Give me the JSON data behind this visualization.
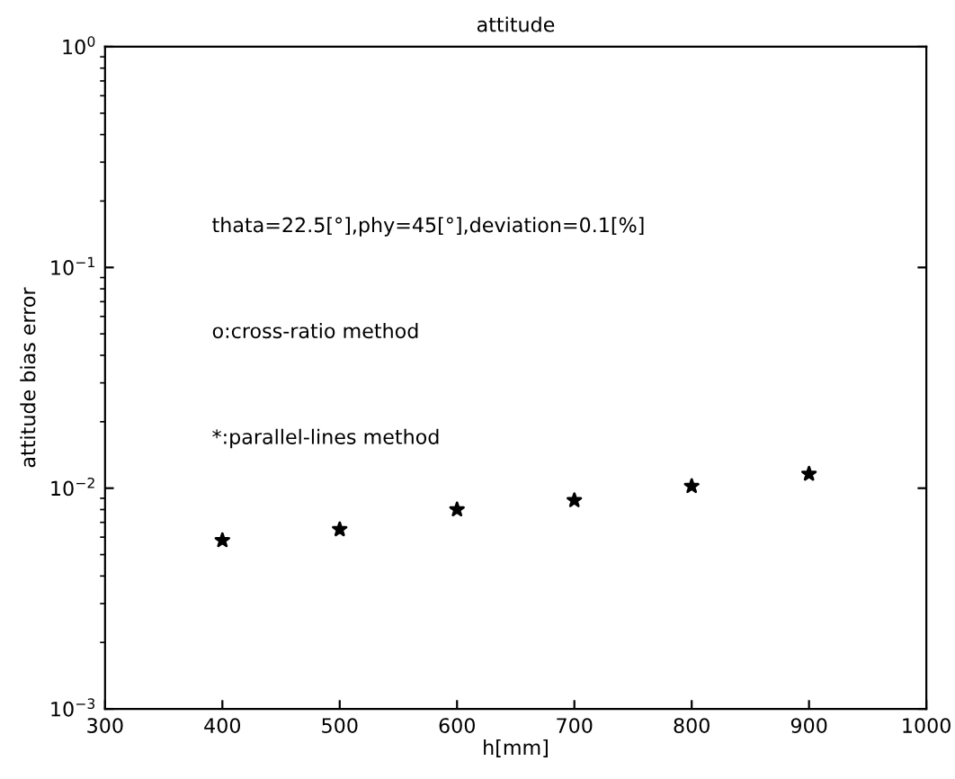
{
  "chart_data": {
    "type": "scatter",
    "title": "attitude",
    "xlabel": "h[mm]",
    "ylabel": "attitude bias error",
    "annotations": [
      "thata=22.5[°],phy=45[°],deviation=0.1[%]",
      "o:cross-ratio method",
      "*:parallel-lines method"
    ],
    "x": [
      400,
      500,
      600,
      700,
      800,
      900
    ],
    "series": [
      {
        "color": "#000000",
        "values": [
          0.0058,
          0.0065,
          0.008,
          0.0088,
          0.0102,
          0.0116
        ]
      }
    ],
    "marker": "star",
    "log": "y",
    "grid": false,
    "xlim": [
      300,
      1000
    ],
    "xticks": [
      300,
      400,
      500,
      600,
      700,
      800,
      900,
      1000
    ],
    "ylim": [
      0.001,
      1
    ],
    "yticks": [
      {
        "value": 0.001,
        "label": "10$^{−3}$"
      },
      {
        "value": 0.01,
        "label": "10$^{−2}$"
      },
      {
        "value": 0.1,
        "label": "10$^{−1}$"
      },
      {
        "value": 1,
        "label": "10$^{0}$"
      }
    ]
  }
}
